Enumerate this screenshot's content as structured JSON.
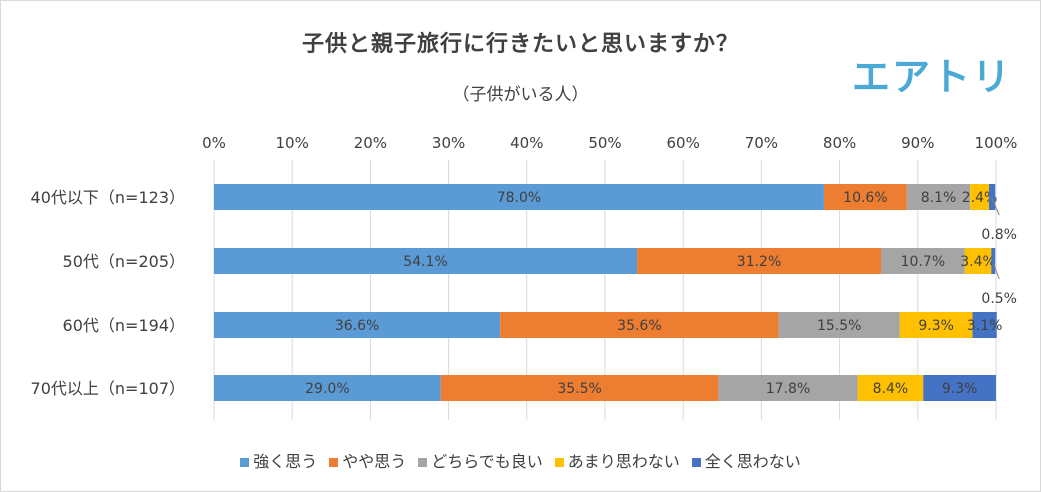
{
  "title": "子供と親子旅行に行きたいと思いますか？",
  "subtitle": "（子供がいる人）",
  "logo": "エアトリ",
  "chart_data": {
    "type": "bar",
    "orientation": "horizontal",
    "stacked": "100%",
    "categories": [
      "40代以下（n=123）",
      "50代（n=205）",
      "60代（n=194）",
      "70代以上（n=107）"
    ],
    "xlim": [
      0,
      100
    ],
    "ticks": [
      "0%",
      "10%",
      "20%",
      "30%",
      "40%",
      "50%",
      "60%",
      "70%",
      "80%",
      "90%",
      "100%"
    ],
    "grid": true,
    "legend_position": "bottom",
    "series": [
      {
        "name": "強く思う",
        "color": "#5b9bd5",
        "values": [
          78.0,
          54.1,
          36.6,
          29.0
        ]
      },
      {
        "name": "やや思う",
        "color": "#ed7d31",
        "values": [
          10.6,
          31.2,
          35.6,
          35.5
        ]
      },
      {
        "name": "どちらでも良い",
        "color": "#a5a5a5",
        "values": [
          8.1,
          10.7,
          15.5,
          17.8
        ]
      },
      {
        "name": "あまり思わない",
        "color": "#ffc000",
        "values": [
          2.4,
          3.4,
          9.3,
          8.4
        ]
      },
      {
        "name": "全く思わない",
        "color": "#4472c4",
        "values": [
          0.8,
          0.5,
          3.1,
          9.3
        ]
      }
    ],
    "labels": [
      [
        "78.0%",
        "10.6%",
        "8.1%",
        "2.4%",
        "0.8%"
      ],
      [
        "54.1%",
        "31.2%",
        "10.7%",
        "3.4%",
        "0.5%"
      ],
      [
        "36.6%",
        "35.6%",
        "15.5%",
        "9.3%",
        "3.1%"
      ],
      [
        "29.0%",
        "35.5%",
        "17.8%",
        "8.4%",
        "9.3%"
      ]
    ]
  }
}
